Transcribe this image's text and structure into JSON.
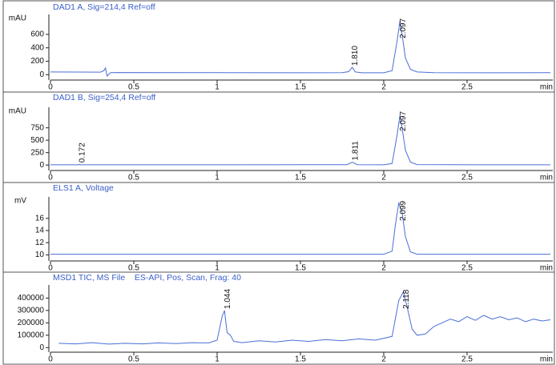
{
  "chart_data": [
    {
      "type": "line",
      "title": "DAD1 A, Sig=214,4 Ref=off",
      "y_unit": "mAU",
      "x_unit": "min",
      "xlim": [
        0,
        3
      ],
      "xticks": [
        0,
        0.5,
        1,
        1.5,
        2,
        2.5
      ],
      "ylim": [
        -80,
        850
      ],
      "yticks": [
        0,
        200,
        400,
        600
      ],
      "series": [
        {
          "color": "#4a6fd6",
          "x": [
            0,
            0.3,
            0.32,
            0.33,
            0.34,
            0.36,
            0.4,
            1.0,
            1.5,
            1.75,
            1.79,
            1.81,
            1.83,
            1.87,
            2.0,
            2.05,
            2.08,
            2.097,
            2.11,
            2.13,
            2.16,
            2.2,
            2.3,
            2.6,
            3.0
          ],
          "values": [
            40,
            38,
            60,
            100,
            -20,
            30,
            32,
            30,
            28,
            30,
            45,
            110,
            40,
            28,
            28,
            60,
            500,
            800,
            600,
            250,
            80,
            40,
            30,
            28,
            30
          ]
        }
      ],
      "peak_labels": [
        {
          "value": 1.81,
          "label": "1.810"
        },
        {
          "value": 2.097,
          "label": "2.097"
        }
      ]
    },
    {
      "type": "line",
      "title": "DAD1 B, Sig=254,4 Ref=off",
      "y_unit": "mAU",
      "x_unit": "min",
      "xlim": [
        0,
        3
      ],
      "xticks": [
        0,
        0.5,
        1,
        1.5,
        2,
        2.5
      ],
      "ylim": [
        -110,
        1100
      ],
      "yticks": [
        0,
        250,
        500,
        750
      ],
      "series": [
        {
          "color": "#4a6fd6",
          "x": [
            0,
            0.17,
            0.172,
            0.18,
            1.0,
            1.78,
            1.811,
            1.84,
            2.0,
            2.05,
            2.08,
            2.097,
            2.11,
            2.13,
            2.16,
            2.2,
            2.6,
            3.0
          ],
          "values": [
            5,
            5,
            15,
            5,
            5,
            8,
            60,
            8,
            5,
            30,
            600,
            1000,
            750,
            300,
            60,
            10,
            5,
            5
          ]
        }
      ],
      "peak_labels": [
        {
          "value": 0.172,
          "label": "0.172"
        },
        {
          "value": 1.811,
          "label": "1.811"
        },
        {
          "value": 2.097,
          "label": "2.097"
        }
      ]
    },
    {
      "type": "line",
      "title": "ELS1 A, Voltage",
      "y_unit": "mV",
      "x_unit": "min",
      "xlim": [
        0,
        3
      ],
      "xticks": [
        0,
        0.5,
        1,
        1.5,
        2,
        2.5
      ],
      "ylim": [
        9,
        19
      ],
      "yticks": [
        10,
        12,
        14,
        16
      ],
      "series": [
        {
          "color": "#4a6fd6",
          "x": [
            0,
            2.0,
            2.05,
            2.07,
            2.09,
            2.11,
            2.13,
            2.16,
            2.2,
            3.0
          ],
          "values": [
            10.1,
            10.1,
            10.6,
            15,
            18.5,
            17,
            13,
            10.5,
            10.1,
            10.1
          ]
        }
      ],
      "peak_labels": [
        {
          "value": 2.099,
          "label": "2.099"
        }
      ]
    },
    {
      "type": "line",
      "title": "MSD1 TIC, MS File    ES-API, Pos, Scan, Frag: 40",
      "x_unit": "min",
      "xlim": [
        0,
        3
      ],
      "xticks": [
        0,
        0.5,
        1,
        1.5,
        2,
        2.5
      ],
      "ylim": [
        -37000,
        480000
      ],
      "yticks": [
        0,
        100000,
        200000,
        300000,
        400000
      ],
      "series": [
        {
          "color": "#4a6fd6",
          "x": [
            0.05,
            0.15,
            0.25,
            0.35,
            0.45,
            0.55,
            0.65,
            0.75,
            0.85,
            0.95,
            1.0,
            1.03,
            1.044,
            1.06,
            1.08,
            1.1,
            1.15,
            1.25,
            1.35,
            1.45,
            1.55,
            1.65,
            1.75,
            1.85,
            1.95,
            2.05,
            2.09,
            2.118,
            2.14,
            2.17,
            2.2,
            2.25,
            2.3,
            2.35,
            2.4,
            2.45,
            2.5,
            2.55,
            2.6,
            2.65,
            2.7,
            2.75,
            2.8,
            2.85,
            2.9,
            2.95,
            3.0
          ],
          "values": [
            35000,
            30000,
            40000,
            28000,
            35000,
            30000,
            38000,
            32000,
            40000,
            38000,
            60000,
            250000,
            300000,
            120000,
            100000,
            50000,
            40000,
            55000,
            45000,
            60000,
            50000,
            65000,
            55000,
            70000,
            60000,
            90000,
            380000,
            450000,
            330000,
            150000,
            100000,
            110000,
            170000,
            200000,
            230000,
            210000,
            250000,
            220000,
            260000,
            230000,
            250000,
            225000,
            240000,
            210000,
            230000,
            215000,
            225000
          ]
        }
      ],
      "peak_labels": [
        {
          "value": 1.044,
          "label": "1.044"
        },
        {
          "value": 2.118,
          "label": "2.118"
        }
      ]
    }
  ]
}
